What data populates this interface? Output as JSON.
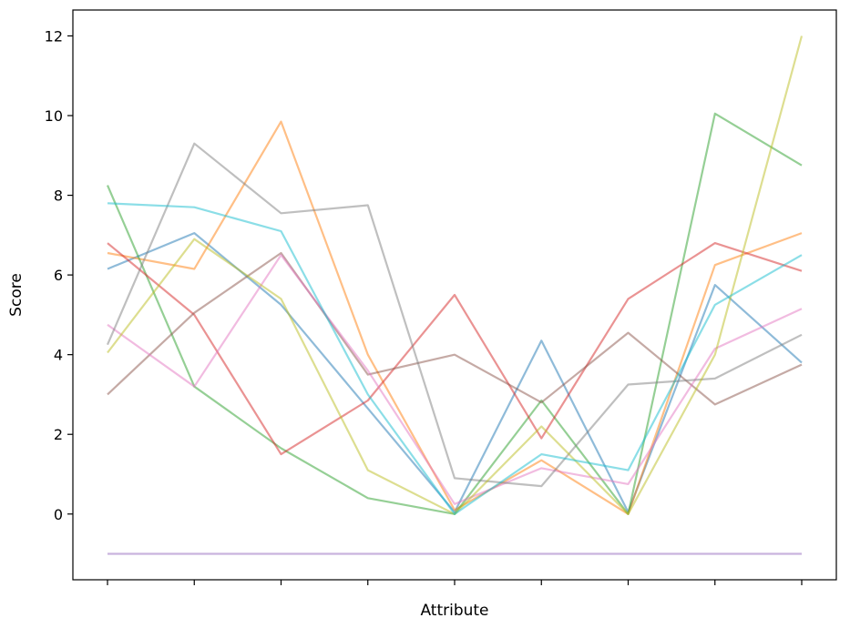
{
  "chart_data": {
    "type": "line",
    "title": "",
    "xlabel": "Attribute",
    "ylabel": "Score",
    "x": [
      0,
      1,
      2,
      3,
      4,
      5,
      6,
      7,
      8
    ],
    "xtick_labels": [
      "",
      "",
      "",
      "",
      "",
      "",
      "",
      "",
      ""
    ],
    "ylim": [
      -1.65,
      12.65
    ],
    "yticks": [
      0,
      2,
      4,
      6,
      8,
      10,
      12
    ],
    "grid": false,
    "legend": "none",
    "line_alpha": 0.5,
    "series": [
      {
        "color": "#1f77b4",
        "values": [
          6.15,
          7.05,
          5.25,
          2.65,
          0.05,
          4.35,
          0.05,
          5.75,
          3.8
        ]
      },
      {
        "color": "#ff7f0e",
        "values": [
          6.55,
          6.15,
          9.85,
          4.0,
          0.1,
          1.35,
          0.0,
          6.25,
          7.05
        ]
      },
      {
        "color": "#2ca02c",
        "values": [
          8.25,
          3.2,
          1.65,
          0.4,
          0.0,
          2.85,
          0.0,
          10.05,
          8.75
        ]
      },
      {
        "color": "#d62728",
        "values": [
          6.8,
          5.0,
          1.5,
          2.85,
          5.5,
          1.9,
          5.4,
          6.8,
          6.1
        ]
      },
      {
        "color": "#9467bd",
        "values": [
          -1.0,
          -1.0,
          -1.0,
          -1.0,
          -1.0,
          -1.0,
          -1.0,
          -1.0,
          -1.0
        ]
      },
      {
        "color": "#8c564b",
        "values": [
          3.0,
          5.05,
          6.55,
          3.5,
          4.0,
          2.8,
          4.55,
          2.75,
          3.75
        ]
      },
      {
        "color": "#e377c2",
        "values": [
          4.75,
          3.2,
          6.5,
          3.6,
          0.25,
          1.15,
          0.75,
          4.15,
          5.15
        ]
      },
      {
        "color": "#7f7f7f",
        "values": [
          4.25,
          9.3,
          7.55,
          7.75,
          0.9,
          0.7,
          3.25,
          3.4,
          4.5
        ]
      },
      {
        "color": "#bcbd22",
        "values": [
          4.05,
          6.9,
          5.4,
          1.1,
          0.0,
          2.2,
          0.0,
          4.0,
          12.0
        ]
      },
      {
        "color": "#17becf",
        "values": [
          7.8,
          7.7,
          7.1,
          3.0,
          0.0,
          1.5,
          1.1,
          5.25,
          6.5
        ]
      }
    ]
  }
}
